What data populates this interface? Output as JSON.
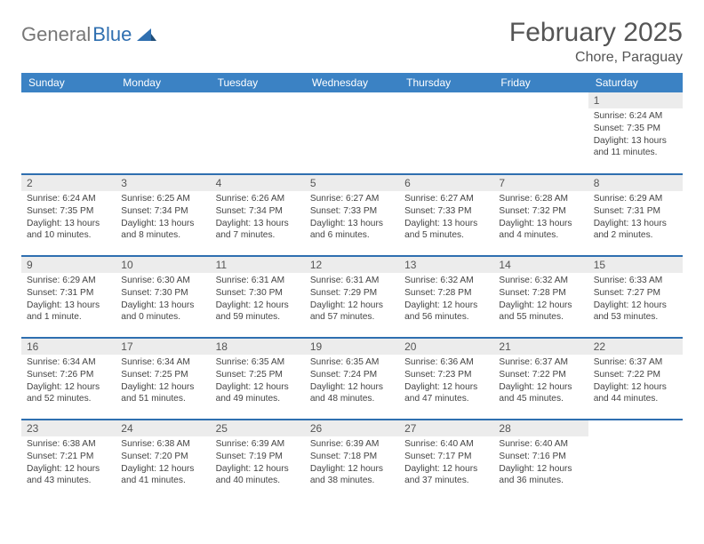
{
  "logo": {
    "text_gray": "General",
    "text_blue": "Blue"
  },
  "title": "February 2025",
  "location": "Chore, Paraguay",
  "colors": {
    "header_bg": "#3b82c4",
    "row_divider": "#2f6fb0",
    "daynum_bg": "#ececec",
    "text": "#444444",
    "logo_gray": "#777777",
    "logo_blue": "#2f6fb0"
  },
  "weekdays": [
    "Sunday",
    "Monday",
    "Tuesday",
    "Wednesday",
    "Thursday",
    "Friday",
    "Saturday"
  ],
  "weeks": [
    [
      {
        "day": "",
        "sunrise": "",
        "sunset": "",
        "daylight": ""
      },
      {
        "day": "",
        "sunrise": "",
        "sunset": "",
        "daylight": ""
      },
      {
        "day": "",
        "sunrise": "",
        "sunset": "",
        "daylight": ""
      },
      {
        "day": "",
        "sunrise": "",
        "sunset": "",
        "daylight": ""
      },
      {
        "day": "",
        "sunrise": "",
        "sunset": "",
        "daylight": ""
      },
      {
        "day": "",
        "sunrise": "",
        "sunset": "",
        "daylight": ""
      },
      {
        "day": "1",
        "sunrise": "Sunrise: 6:24 AM",
        "sunset": "Sunset: 7:35 PM",
        "daylight": "Daylight: 13 hours and 11 minutes."
      }
    ],
    [
      {
        "day": "2",
        "sunrise": "Sunrise: 6:24 AM",
        "sunset": "Sunset: 7:35 PM",
        "daylight": "Daylight: 13 hours and 10 minutes."
      },
      {
        "day": "3",
        "sunrise": "Sunrise: 6:25 AM",
        "sunset": "Sunset: 7:34 PM",
        "daylight": "Daylight: 13 hours and 8 minutes."
      },
      {
        "day": "4",
        "sunrise": "Sunrise: 6:26 AM",
        "sunset": "Sunset: 7:34 PM",
        "daylight": "Daylight: 13 hours and 7 minutes."
      },
      {
        "day": "5",
        "sunrise": "Sunrise: 6:27 AM",
        "sunset": "Sunset: 7:33 PM",
        "daylight": "Daylight: 13 hours and 6 minutes."
      },
      {
        "day": "6",
        "sunrise": "Sunrise: 6:27 AM",
        "sunset": "Sunset: 7:33 PM",
        "daylight": "Daylight: 13 hours and 5 minutes."
      },
      {
        "day": "7",
        "sunrise": "Sunrise: 6:28 AM",
        "sunset": "Sunset: 7:32 PM",
        "daylight": "Daylight: 13 hours and 4 minutes."
      },
      {
        "day": "8",
        "sunrise": "Sunrise: 6:29 AM",
        "sunset": "Sunset: 7:31 PM",
        "daylight": "Daylight: 13 hours and 2 minutes."
      }
    ],
    [
      {
        "day": "9",
        "sunrise": "Sunrise: 6:29 AM",
        "sunset": "Sunset: 7:31 PM",
        "daylight": "Daylight: 13 hours and 1 minute."
      },
      {
        "day": "10",
        "sunrise": "Sunrise: 6:30 AM",
        "sunset": "Sunset: 7:30 PM",
        "daylight": "Daylight: 13 hours and 0 minutes."
      },
      {
        "day": "11",
        "sunrise": "Sunrise: 6:31 AM",
        "sunset": "Sunset: 7:30 PM",
        "daylight": "Daylight: 12 hours and 59 minutes."
      },
      {
        "day": "12",
        "sunrise": "Sunrise: 6:31 AM",
        "sunset": "Sunset: 7:29 PM",
        "daylight": "Daylight: 12 hours and 57 minutes."
      },
      {
        "day": "13",
        "sunrise": "Sunrise: 6:32 AM",
        "sunset": "Sunset: 7:28 PM",
        "daylight": "Daylight: 12 hours and 56 minutes."
      },
      {
        "day": "14",
        "sunrise": "Sunrise: 6:32 AM",
        "sunset": "Sunset: 7:28 PM",
        "daylight": "Daylight: 12 hours and 55 minutes."
      },
      {
        "day": "15",
        "sunrise": "Sunrise: 6:33 AM",
        "sunset": "Sunset: 7:27 PM",
        "daylight": "Daylight: 12 hours and 53 minutes."
      }
    ],
    [
      {
        "day": "16",
        "sunrise": "Sunrise: 6:34 AM",
        "sunset": "Sunset: 7:26 PM",
        "daylight": "Daylight: 12 hours and 52 minutes."
      },
      {
        "day": "17",
        "sunrise": "Sunrise: 6:34 AM",
        "sunset": "Sunset: 7:25 PM",
        "daylight": "Daylight: 12 hours and 51 minutes."
      },
      {
        "day": "18",
        "sunrise": "Sunrise: 6:35 AM",
        "sunset": "Sunset: 7:25 PM",
        "daylight": "Daylight: 12 hours and 49 minutes."
      },
      {
        "day": "19",
        "sunrise": "Sunrise: 6:35 AM",
        "sunset": "Sunset: 7:24 PM",
        "daylight": "Daylight: 12 hours and 48 minutes."
      },
      {
        "day": "20",
        "sunrise": "Sunrise: 6:36 AM",
        "sunset": "Sunset: 7:23 PM",
        "daylight": "Daylight: 12 hours and 47 minutes."
      },
      {
        "day": "21",
        "sunrise": "Sunrise: 6:37 AM",
        "sunset": "Sunset: 7:22 PM",
        "daylight": "Daylight: 12 hours and 45 minutes."
      },
      {
        "day": "22",
        "sunrise": "Sunrise: 6:37 AM",
        "sunset": "Sunset: 7:22 PM",
        "daylight": "Daylight: 12 hours and 44 minutes."
      }
    ],
    [
      {
        "day": "23",
        "sunrise": "Sunrise: 6:38 AM",
        "sunset": "Sunset: 7:21 PM",
        "daylight": "Daylight: 12 hours and 43 minutes."
      },
      {
        "day": "24",
        "sunrise": "Sunrise: 6:38 AM",
        "sunset": "Sunset: 7:20 PM",
        "daylight": "Daylight: 12 hours and 41 minutes."
      },
      {
        "day": "25",
        "sunrise": "Sunrise: 6:39 AM",
        "sunset": "Sunset: 7:19 PM",
        "daylight": "Daylight: 12 hours and 40 minutes."
      },
      {
        "day": "26",
        "sunrise": "Sunrise: 6:39 AM",
        "sunset": "Sunset: 7:18 PM",
        "daylight": "Daylight: 12 hours and 38 minutes."
      },
      {
        "day": "27",
        "sunrise": "Sunrise: 6:40 AM",
        "sunset": "Sunset: 7:17 PM",
        "daylight": "Daylight: 12 hours and 37 minutes."
      },
      {
        "day": "28",
        "sunrise": "Sunrise: 6:40 AM",
        "sunset": "Sunset: 7:16 PM",
        "daylight": "Daylight: 12 hours and 36 minutes."
      },
      {
        "day": "",
        "sunrise": "",
        "sunset": "",
        "daylight": ""
      }
    ]
  ]
}
